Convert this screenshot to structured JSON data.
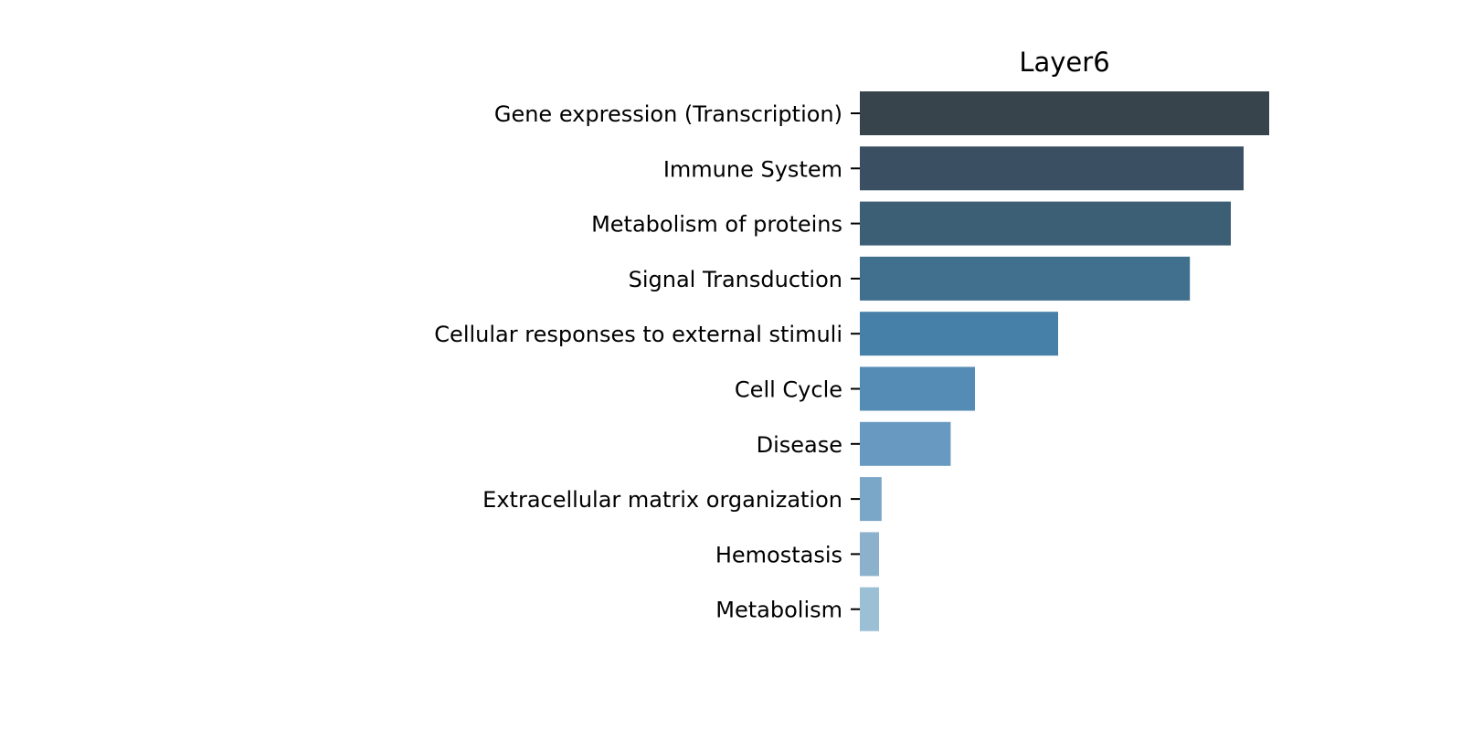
{
  "chart_data": {
    "type": "bar",
    "orientation": "horizontal",
    "title": "Layer6",
    "xlabel": "",
    "ylabel": "",
    "categories": [
      "Gene expression (Transcription)",
      "Immune System",
      "Metabolism of proteins",
      "Signal Transduction",
      "Cellular responses to external stimuli",
      "Cell Cycle",
      "Disease",
      "Extracellular matrix organization",
      "Hemostasis",
      "Metabolism"
    ],
    "values": [
      32,
      30,
      29,
      25.8,
      15.5,
      9,
      7.1,
      1.7,
      1.5,
      1.5
    ],
    "xlim": [
      0,
      32
    ],
    "grid": false,
    "x_axis_visible": false,
    "colors": [
      "#37444b",
      "#3a5062",
      "#3d5f76",
      "#416f8e",
      "#467fa8",
      "#548cb6",
      "#6899c0",
      "#7aa6c8",
      "#8cb1cd",
      "#9bc0d5"
    ]
  }
}
